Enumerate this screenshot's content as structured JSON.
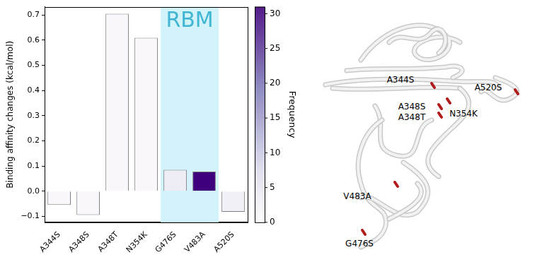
{
  "chart_data": {
    "type": "bar",
    "categories": [
      "A344S",
      "A348S",
      "A348T",
      "N354K",
      "G476S",
      "V483A",
      "A520S"
    ],
    "values": [
      -0.055,
      -0.095,
      0.705,
      0.61,
      0.085,
      0.078,
      -0.082
    ],
    "frequency": [
      1,
      1,
      1,
      1,
      4,
      31,
      3
    ],
    "ylabel": "Binding affinity changes (kcal/mol)",
    "ylim": [
      -0.124,
      0.733
    ],
    "yticks": [
      {
        "value": -0.1,
        "label": "−0.1"
      },
      {
        "value": 0,
        "label": "0.0"
      },
      0.1,
      0.2,
      0.3,
      0.4,
      0.5,
      0.6,
      0.7
    ],
    "colorbar": {
      "label": "Frequency",
      "range": [
        0,
        31
      ],
      "ticks": [
        0,
        5,
        10,
        15,
        20,
        25,
        30
      ]
    },
    "annotations": [
      {
        "text": "RBM",
        "from": "G476S",
        "to": "V483A"
      }
    ]
  },
  "structure_labels": [
    "A344S",
    "A520S",
    "A348S",
    "A348T",
    "N354K",
    "V483A",
    "G476S"
  ]
}
